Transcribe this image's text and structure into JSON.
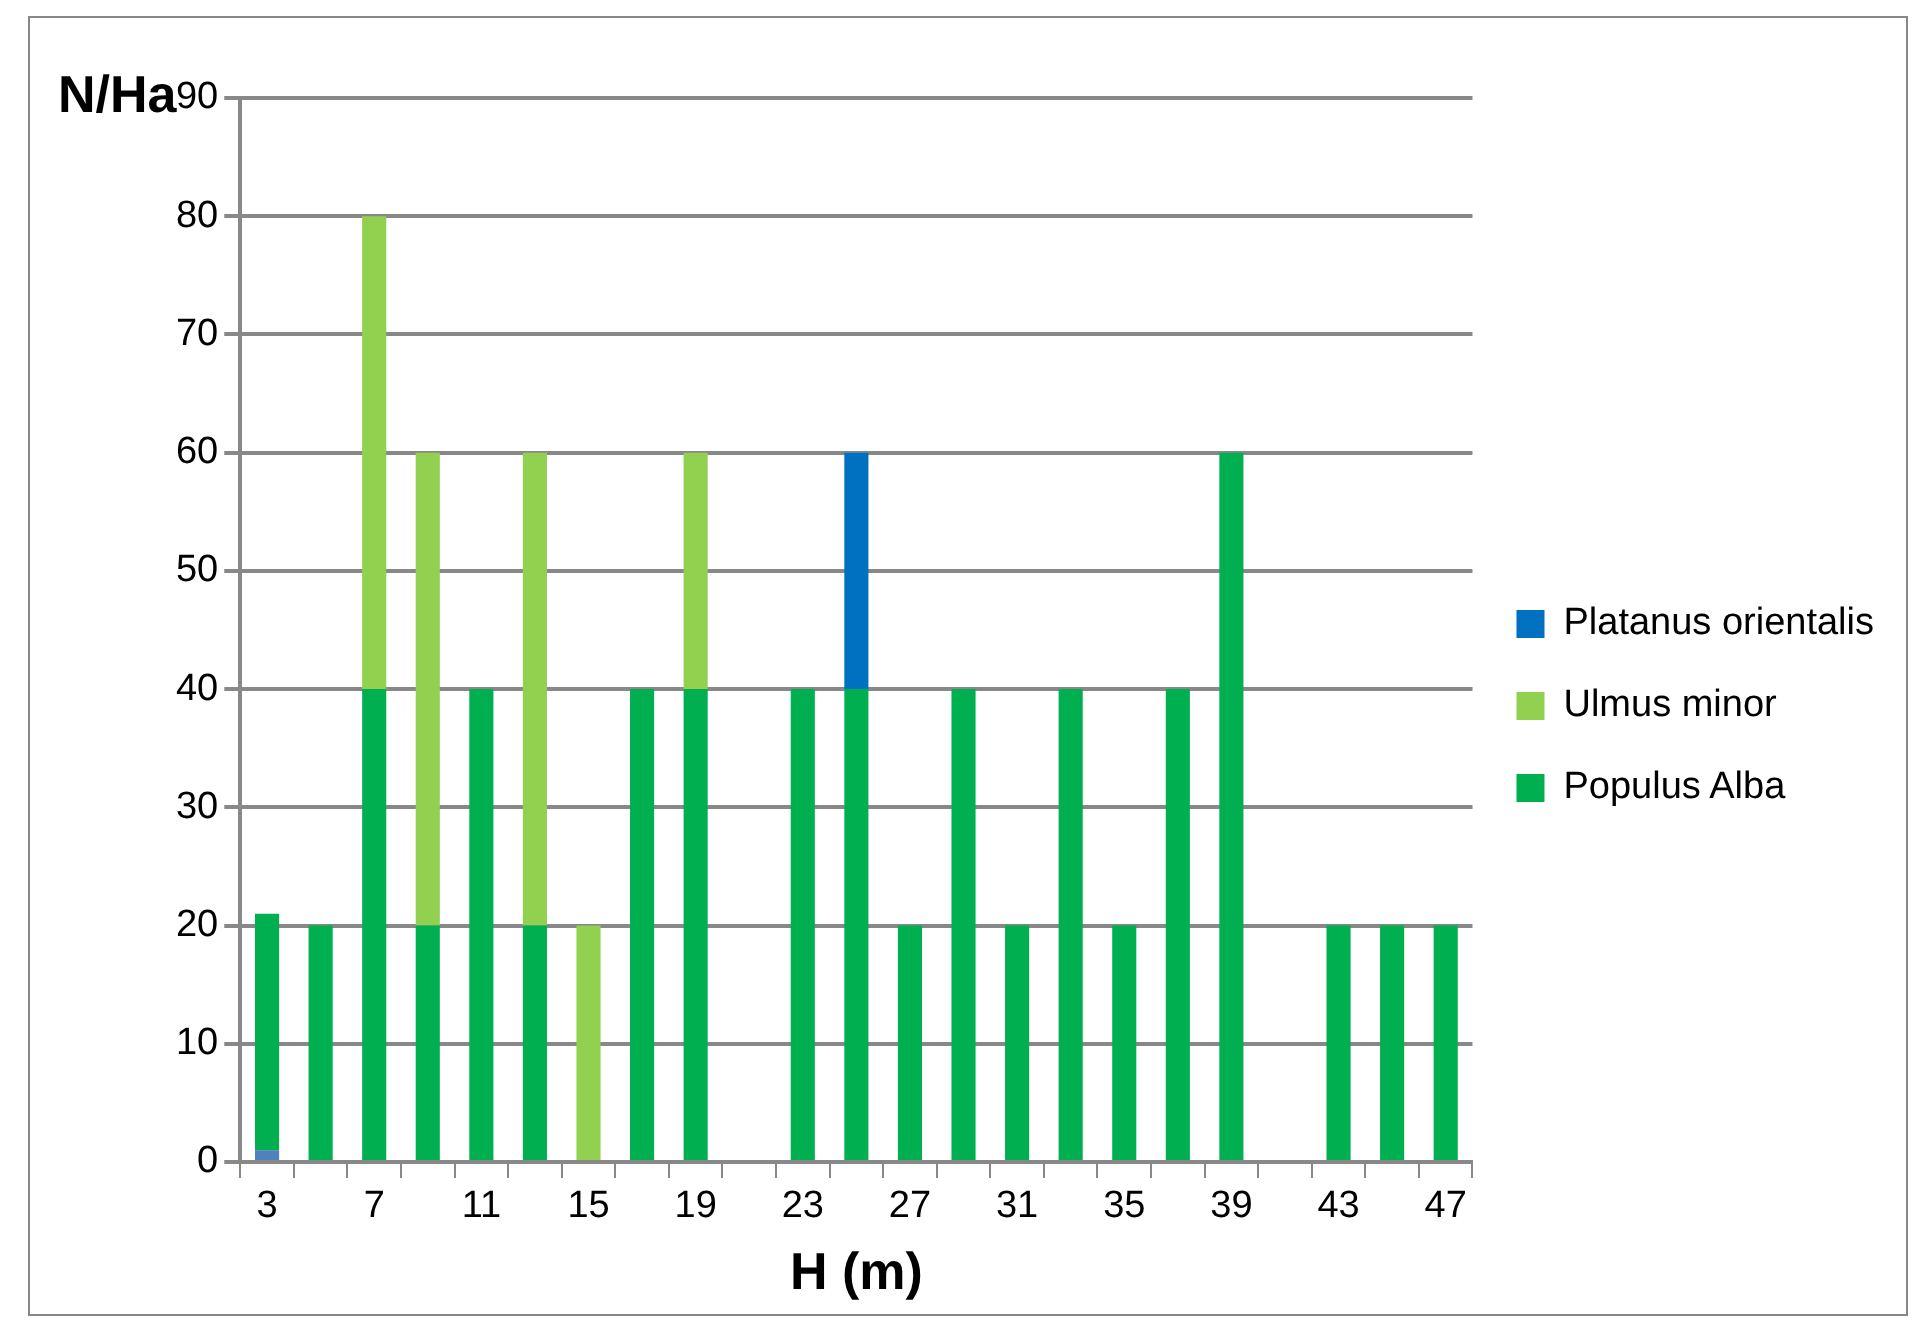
{
  "chart_data": {
    "type": "bar",
    "stacked": true,
    "xlabel": "H (m)",
    "ylabel": "N/Ha",
    "categories": [
      "3",
      null,
      "7",
      null,
      "11",
      null,
      "15",
      null,
      "19",
      null,
      "23",
      null,
      "27",
      null,
      "31",
      null,
      "35",
      null,
      "39",
      null,
      "43",
      null,
      "47"
    ],
    "series": [
      {
        "color": "#4f81bd",
        "values": [
          1,
          null,
          null,
          null,
          null,
          null,
          null,
          null,
          null,
          null,
          null,
          null,
          null,
          null,
          null,
          null,
          null,
          null,
          null,
          null,
          null,
          null,
          null
        ]
      },
      {
        "name": "Populus Alba",
        "color": "#00b050",
        "values": [
          20,
          20,
          40,
          20,
          40,
          20,
          null,
          40,
          40,
          null,
          40,
          40,
          20,
          40,
          20,
          40,
          20,
          40,
          60,
          null,
          20,
          20,
          20
        ]
      },
      {
        "name": "Ulmus minor",
        "color": "#92d050",
        "values": [
          null,
          null,
          40,
          40,
          null,
          40,
          20,
          null,
          20,
          null,
          null,
          null,
          null,
          null,
          null,
          null,
          null,
          null,
          null,
          null,
          null,
          null,
          null
        ]
      },
      {
        "name": "Platanus orientalis",
        "color": "#0070c0",
        "values": [
          null,
          null,
          null,
          null,
          null,
          null,
          null,
          null,
          null,
          null,
          null,
          20,
          null,
          null,
          null,
          null,
          null,
          null,
          null,
          null,
          null,
          null,
          null
        ]
      }
    ],
    "ylim": [
      0,
      90
    ],
    "yticks": [
      0,
      10,
      20,
      30,
      40,
      50,
      60,
      70,
      80,
      90
    ],
    "grid": "y",
    "legend": "right"
  }
}
